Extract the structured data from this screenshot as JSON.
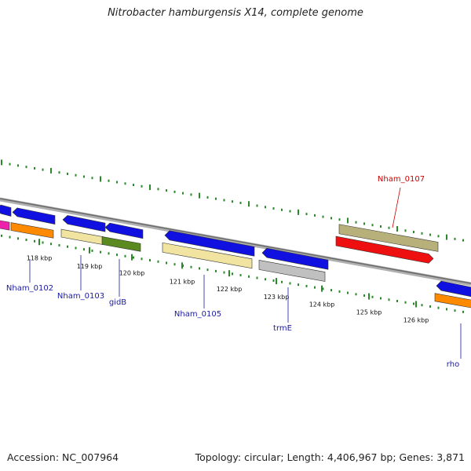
{
  "title": "Nitrobacter hamburgensis X14, complete genome",
  "footer": {
    "accession": "Accession: NC_007964",
    "summary": "Topology: circular; Length: 4,406,967 bp; Genes: 3,871"
  },
  "colors": {
    "backbone": "#8a8a8a",
    "tick": "#2a8a2a",
    "label_blue": "#1a1aa0",
    "label_red": "#cc0000",
    "cds_blue": "#1010e0",
    "orange": "#ff8a00",
    "pale_yellow": "#f0e4a0",
    "olive_green": "#5a8a20",
    "khaki": "#b8b07a",
    "red": "#ee1010",
    "magenta": "#ee22aa",
    "gray": "#c0c0c0"
  },
  "ticks": [
    "118 kbp",
    "119 kbp",
    "120 kbp",
    "121 kbp",
    "122 kbp",
    "123 kbp",
    "124 kbp",
    "125 kbp",
    "126 kbp"
  ],
  "gene_labels": [
    {
      "text": "Nham_0102",
      "color": "blue"
    },
    {
      "text": "Nham_0103",
      "color": "blue"
    },
    {
      "text": "gidB",
      "color": "blue"
    },
    {
      "text": "Nham_0105",
      "color": "blue"
    },
    {
      "text": "trmE",
      "color": "blue"
    },
    {
      "text": "rho",
      "color": "blue"
    },
    {
      "text": "Nham_0107",
      "color": "red"
    }
  ],
  "features": [
    {
      "name": "Nham_0102",
      "track": "forward",
      "color": "cds_blue",
      "arrow": "left"
    },
    {
      "name": "Nham_0102",
      "track": "forward-rna",
      "color": "orange",
      "arrow": "none"
    },
    {
      "name": "Nham_0103",
      "track": "forward",
      "color": "cds_blue",
      "arrow": "left"
    },
    {
      "name": "Nham_0103",
      "track": "forward-rna",
      "color": "pale_yellow",
      "arrow": "none"
    },
    {
      "name": "gidB",
      "track": "forward",
      "color": "cds_blue",
      "arrow": "left"
    },
    {
      "name": "gidB",
      "track": "forward-rna",
      "color": "olive_green",
      "arrow": "none"
    },
    {
      "name": "Nham_0105",
      "track": "forward",
      "color": "cds_blue",
      "arrow": "left"
    },
    {
      "name": "Nham_0105",
      "track": "forward-rna",
      "color": "pale_yellow",
      "arrow": "none"
    },
    {
      "name": "trmE",
      "track": "forward",
      "color": "cds_blue",
      "arrow": "left"
    },
    {
      "name": "trmE",
      "track": "forward-rna",
      "color": "gray",
      "arrow": "none"
    },
    {
      "name": "Nham_0107",
      "track": "reverse",
      "color": "khaki",
      "arrow": "none"
    },
    {
      "name": "Nham_0107",
      "track": "reverse-rna",
      "color": "red",
      "arrow": "right"
    },
    {
      "name": "rho",
      "track": "forward",
      "color": "cds_blue",
      "arrow": "left"
    },
    {
      "name": "rho",
      "track": "forward-rna",
      "color": "orange",
      "arrow": "none"
    }
  ]
}
